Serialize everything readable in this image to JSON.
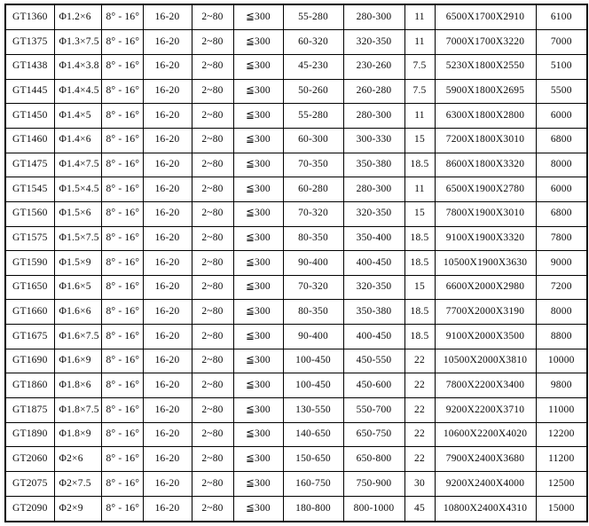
{
  "table": {
    "rows": [
      [
        "GT1360",
        "Φ1.2×6",
        "8° - 16°",
        "16-20",
        "2~80",
        "≦300",
        "55-280",
        "280-300",
        "11",
        "6500X1700X2910",
        "6100"
      ],
      [
        "GT1375",
        "Φ1.3×7.5",
        "8° - 16°",
        "16-20",
        "2~80",
        "≦300",
        "60-320",
        "320-350",
        "11",
        "7000X1700X3220",
        "7000"
      ],
      [
        "GT1438",
        "Φ1.4×3.8",
        "8° - 16°",
        "16-20",
        "2~80",
        "≦300",
        "45-230",
        "230-260",
        "7.5",
        "5230X1800X2550",
        "5100"
      ],
      [
        "GT1445",
        "Φ1.4×4.5",
        "8° - 16°",
        "16-20",
        "2~80",
        "≦300",
        "50-260",
        "260-280",
        "7.5",
        "5900X1800X2695",
        "5500"
      ],
      [
        "GT1450",
        "Φ1.4×5",
        "8° - 16°",
        "16-20",
        "2~80",
        "≦300",
        "55-280",
        "280-300",
        "11",
        "6300X1800X2800",
        "6000"
      ],
      [
        "GT1460",
        "Φ1.4×6",
        "8° - 16°",
        "16-20",
        "2~80",
        "≦300",
        "60-300",
        "300-330",
        "15",
        "7200X1800X3010",
        "6800"
      ],
      [
        "GT1475",
        "Φ1.4×7.5",
        "8° - 16°",
        "16-20",
        "2~80",
        "≦300",
        "70-350",
        "350-380",
        "18.5",
        "8600X1800X3320",
        "8000"
      ],
      [
        "GT1545",
        "Φ1.5×4.5",
        "8° - 16°",
        "16-20",
        "2~80",
        "≦300",
        "60-280",
        "280-300",
        "11",
        "6500X1900X2780",
        "6000"
      ],
      [
        "GT1560",
        "Φ1.5×6",
        "8° - 16°",
        "16-20",
        "2~80",
        "≦300",
        "70-320",
        "320-350",
        "15",
        "7800X1900X3010",
        "6800"
      ],
      [
        "GT1575",
        "Φ1.5×7.5",
        "8° - 16°",
        "16-20",
        "2~80",
        "≦300",
        "80-350",
        "350-400",
        "18.5",
        "9100X1900X3320",
        "7800"
      ],
      [
        "GT1590",
        "Φ1.5×9",
        "8° - 16°",
        "16-20",
        "2~80",
        "≦300",
        "90-400",
        "400-450",
        "18.5",
        "10500X1900X3630",
        "9000"
      ],
      [
        "GT1650",
        "Φ1.6×5",
        "8° - 16°",
        "16-20",
        "2~80",
        "≦300",
        "70-320",
        "320-350",
        "15",
        "6600X2000X2980",
        "7200"
      ],
      [
        "GT1660",
        "Φ1.6×6",
        "8° - 16°",
        "16-20",
        "2~80",
        "≦300",
        "80-350",
        "350-380",
        "18.5",
        "7700X2000X3190",
        "8000"
      ],
      [
        "GT1675",
        "Φ1.6×7.5",
        "8° - 16°",
        "16-20",
        "2~80",
        "≦300",
        "90-400",
        "400-450",
        "18.5",
        "9100X2000X3500",
        "8800"
      ],
      [
        "GT1690",
        "Φ1.6×9",
        "8° - 16°",
        "16-20",
        "2~80",
        "≦300",
        "100-450",
        "450-550",
        "22",
        "10500X2000X3810",
        "10000"
      ],
      [
        "GT1860",
        "Φ1.8×6",
        "8° - 16°",
        "16-20",
        "2~80",
        "≦300",
        "100-450",
        "450-600",
        "22",
        "7800X2200X3400",
        "9800"
      ],
      [
        "GT1875",
        "Φ1.8×7.5",
        "8° - 16°",
        "16-20",
        "2~80",
        "≦300",
        "130-550",
        "550-700",
        "22",
        "9200X2200X3710",
        "11000"
      ],
      [
        "GT1890",
        "Φ1.8×9",
        "8° - 16°",
        "16-20",
        "2~80",
        "≦300",
        "140-650",
        "650-750",
        "22",
        "10600X2200X4020",
        "12200"
      ],
      [
        "GT2060",
        "Φ2×6",
        "8° - 16°",
        "16-20",
        "2~80",
        "≦300",
        "150-650",
        "650-800",
        "22",
        "7900X2400X3680",
        "11200"
      ],
      [
        "GT2075",
        "Φ2×7.5",
        "8° - 16°",
        "16-20",
        "2~80",
        "≦300",
        "160-750",
        "750-900",
        "30",
        "9200X2400X4000",
        "12500"
      ],
      [
        "GT2090",
        "Φ2×9",
        "8° - 16°",
        "16-20",
        "2~80",
        "≦300",
        "180-800",
        "800-1000",
        "45",
        "10800X2400X4310",
        "15000"
      ]
    ]
  }
}
